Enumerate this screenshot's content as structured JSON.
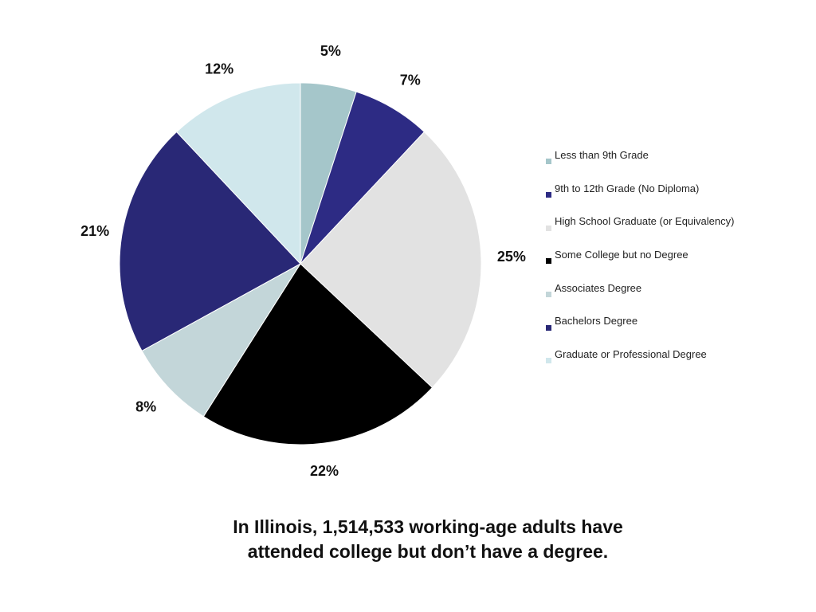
{
  "chart_data": {
    "type": "pie",
    "title": "",
    "start_angle": "12 o'clock",
    "direction": "clockwise",
    "categories": [
      "Less than 9th Grade",
      "9th to 12th Grade (No Diploma)",
      "High School Graduate (or Equivalency)",
      "Some College but no Degree",
      "Associates Degree",
      "Bachelors Degree",
      "Graduate or Professional Degree"
    ],
    "values": [
      5,
      7,
      25,
      22,
      8,
      21,
      12
    ],
    "value_labels": [
      "5%",
      "7%",
      "25%",
      "22%",
      "8%",
      "21%",
      "12%"
    ],
    "colors": [
      "#a5c6ca",
      "#2d2b84",
      "#e2e2e2",
      "#000000",
      "#c3d6d9",
      "#292876",
      "#d0e7ec"
    ],
    "legend_position": "right"
  },
  "caption": {
    "line1": "In Illinois, 1,514,533 working-age adults have",
    "line2": "attended college but don’t have a degree."
  }
}
